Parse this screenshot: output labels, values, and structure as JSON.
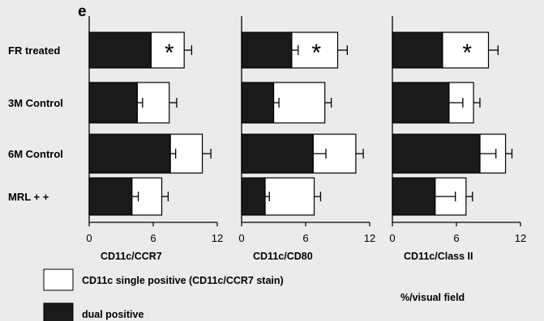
{
  "panel_label": "e",
  "categories": [
    "FR treated",
    "3M Control",
    "6M Control",
    "MRL + +"
  ],
  "legend": {
    "single_label": "CD11c single positive (CD11c/CCR7 stain)",
    "dual_label": "dual positive",
    "unit_label": "%/visual field"
  },
  "colors": {
    "dual": "#1a1a1a",
    "single": "#ffffff",
    "outline": "#000000",
    "background": "#ebebeb"
  },
  "chart_data": [
    {
      "type": "bar",
      "orientation": "horizontal",
      "stacked": true,
      "xlabel": "CD11c/CCR7",
      "categories": [
        "FR treated",
        "3M Control",
        "6M Control",
        "MRL + +"
      ],
      "xlim": [
        0,
        12
      ],
      "xticks": [
        0,
        6,
        12
      ],
      "series": [
        {
          "key": "dual",
          "values": [
            5.8,
            4.5,
            7.6,
            4.0
          ],
          "errors": [
            0.0,
            0.5,
            0.5,
            0.6
          ]
        },
        {
          "key": "single",
          "values": [
            3.1,
            3.0,
            3.0,
            2.8
          ],
          "errors": [
            0.7,
            0.7,
            0.8,
            0.6
          ]
        }
      ],
      "significance": [
        "*",
        "",
        "",
        ""
      ]
    },
    {
      "type": "bar",
      "orientation": "horizontal",
      "stacked": true,
      "xlabel": "CD11c/CD80",
      "categories": [
        "FR treated",
        "3M Control",
        "6M Control",
        "MRL + +"
      ],
      "xlim": [
        0,
        12
      ],
      "xticks": [
        0,
        6,
        12
      ],
      "series": [
        {
          "key": "dual",
          "values": [
            4.7,
            3.0,
            6.7,
            2.2
          ],
          "errors": [
            0.6,
            0.5,
            1.2,
            0.4
          ]
        },
        {
          "key": "single",
          "values": [
            4.3,
            4.8,
            4.0,
            4.6
          ],
          "errors": [
            0.9,
            0.6,
            0.7,
            0.6
          ]
        }
      ],
      "significance": [
        "*",
        "",
        "",
        ""
      ]
    },
    {
      "type": "bar",
      "orientation": "horizontal",
      "stacked": true,
      "xlabel": "CD11c/Class II",
      "categories": [
        "FR treated",
        "3M Control",
        "6M Control",
        "MRL + +"
      ],
      "xlim": [
        0,
        12
      ],
      "xticks": [
        0,
        6,
        12
      ],
      "series": [
        {
          "key": "dual",
          "values": [
            4.7,
            5.3,
            8.2,
            4.0
          ],
          "errors": [
            0.0,
            1.3,
            1.5,
            1.9
          ]
        },
        {
          "key": "single",
          "values": [
            4.3,
            2.3,
            2.4,
            2.9
          ],
          "errors": [
            0.9,
            0.6,
            0.6,
            0.6
          ]
        }
      ],
      "significance": [
        "*",
        "",
        "",
        ""
      ]
    }
  ]
}
